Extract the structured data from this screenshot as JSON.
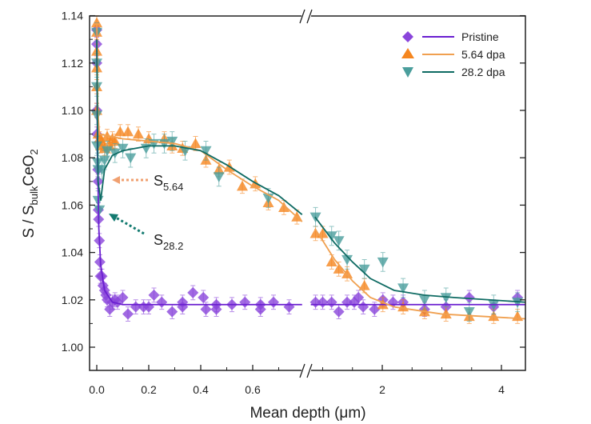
{
  "chart_data": {
    "type": "scatter",
    "xlabel": "Mean depth (μm)",
    "ylabel_parts": {
      "main": "S / S",
      "sub": "bulk",
      "mid": "CeO",
      "sub2": "2"
    },
    "ylim": [
      0.99,
      1.14
    ],
    "x_segments": [
      [
        -0.03,
        0.79
      ],
      [
        0.8,
        4.4
      ]
    ],
    "xticks_left": [
      0.0,
      0.2,
      0.4,
      0.6
    ],
    "xtick_labels_left": [
      "0.0",
      "0.2",
      "0.4",
      "0.6"
    ],
    "xticks_right": [
      2,
      4
    ],
    "xtick_labels_right": [
      "2",
      "4"
    ],
    "yticks": [
      1.0,
      1.02,
      1.04,
      1.06,
      1.08,
      1.1,
      1.12,
      1.14
    ],
    "ytick_labels": [
      "1.00",
      "1.02",
      "1.04",
      "1.06",
      "1.08",
      "1.10",
      "1.12",
      "1.14"
    ],
    "legend_position": "top-right",
    "annotations": [
      {
        "main": "S",
        "sub": "5.64",
        "color": "#f0a070"
      },
      {
        "main": "S",
        "sub": "28.2",
        "color": "#137a70"
      }
    ],
    "series": [
      {
        "name": "Pristine",
        "marker": "diamond",
        "color": "#8a45db",
        "line": "#6a1fd0",
        "error": 0.003,
        "x": [
          0,
          0,
          0,
          0,
          0,
          0.004,
          0.005,
          0.006,
          0.007,
          0.01,
          0.012,
          0.014,
          0.02,
          0.024,
          0.03,
          0.035,
          0.04,
          0.05,
          0.06,
          0.07,
          0.08,
          0.1,
          0.12,
          0.15,
          0.18,
          0.2,
          0.22,
          0.25,
          0.29,
          0.33,
          0.37,
          0.41,
          0.46,
          0.52,
          0.57,
          0.63,
          0.68,
          0.74,
          0.33,
          0.42,
          0.46,
          0.63,
          0.88,
          1.0,
          1.15,
          1.27,
          1.41,
          1.53,
          1.6,
          1.68,
          1.87,
          2.01,
          2.18,
          2.35,
          2.71,
          3.07,
          3.46,
          3.87,
          4.27
        ],
        "y": [
          1.134,
          1.128,
          1.12,
          1.1,
          1.09,
          1.075,
          1.07,
          1.058,
          1.054,
          1.045,
          1.036,
          1.03,
          1.03,
          1.026,
          1.024,
          1.022,
          1.02,
          1.016,
          1.019,
          1.02,
          1.019,
          1.021,
          1.014,
          1.017,
          1.017,
          1.017,
          1.022,
          1.019,
          1.015,
          1.017,
          1.023,
          1.021,
          1.018,
          1.018,
          1.019,
          1.018,
          1.019,
          1.017,
          1.019,
          1.016,
          1.016,
          1.016,
          1.019,
          1.019,
          1.019,
          1.015,
          1.019,
          1.019,
          1.021,
          1.017,
          1.016,
          1.02,
          1.019,
          1.019,
          1.016,
          1.017,
          1.021,
          1.017,
          1.021
        ],
        "fit_x": [
          0,
          0.003,
          0.008,
          0.015,
          0.03,
          0.06,
          0.1,
          0.79,
          0.8,
          4.4
        ],
        "fit_y": [
          1.135,
          1.08,
          1.05,
          1.035,
          1.024,
          1.019,
          1.018,
          1.018,
          1.018,
          1.018
        ]
      },
      {
        "name": "5.64 dpa",
        "marker": "up",
        "color": "#f5861f",
        "line": "#f0a050",
        "error": 0.003,
        "x": [
          0,
          0,
          0,
          0,
          0,
          0,
          0.005,
          0.01,
          0.015,
          0.02,
          0.03,
          0.04,
          0.05,
          0.06,
          0.07,
          0.09,
          0.12,
          0.16,
          0.2,
          0.26,
          0.29,
          0.33,
          0.38,
          0.42,
          0.47,
          0.51,
          0.56,
          0.61,
          0.66,
          0.72,
          0.77,
          0.88,
          1.0,
          1.15,
          1.27,
          1.41,
          1.7,
          2.01,
          2.35,
          2.71,
          3.07,
          3.46,
          3.87,
          4.27
        ],
        "y": [
          1.137,
          1.133,
          1.125,
          1.118,
          1.11,
          1.1,
          1.09,
          1.088,
          1.085,
          1.087,
          1.084,
          1.089,
          1.085,
          1.088,
          1.087,
          1.091,
          1.091,
          1.09,
          1.088,
          1.088,
          1.085,
          1.084,
          1.086,
          1.079,
          1.075,
          1.076,
          1.068,
          1.069,
          1.061,
          1.059,
          1.055,
          1.048,
          1.048,
          1.036,
          1.033,
          1.031,
          1.026,
          1.018,
          1.017,
          1.015,
          1.014,
          1.013,
          1.013,
          1.013
        ],
        "fit_x": [
          0,
          0.004,
          0.01,
          0.1,
          0.3,
          0.4,
          0.5,
          0.6,
          0.7,
          0.79,
          0.87,
          1.0,
          1.2,
          1.5,
          1.8,
          2.2,
          3.0,
          4.4
        ],
        "fit_y": [
          1.137,
          1.1,
          1.09,
          1.088,
          1.086,
          1.083,
          1.075,
          1.068,
          1.062,
          1.053,
          1.05,
          1.045,
          1.037,
          1.028,
          1.021,
          1.017,
          1.014,
          1.012
        ]
      },
      {
        "name": "28.2 dpa",
        "marker": "down",
        "color": "#4a9e9c",
        "line": "#0f6b63",
        "error": 0.004,
        "x": [
          0,
          0,
          0,
          0,
          0,
          0.003,
          0.005,
          0.005,
          0.01,
          0.02,
          0.03,
          0.04,
          0.07,
          0.1,
          0.13,
          0.19,
          0.22,
          0.26,
          0.29,
          0.34,
          0.42,
          0.47,
          0.66,
          0.88,
          1.15,
          1.27,
          1.41,
          1.7,
          2.01,
          2.35,
          2.71,
          3.07,
          3.46,
          3.87,
          4.27
        ],
        "y": [
          1.133,
          1.12,
          1.11,
          1.098,
          1.085,
          1.078,
          1.075,
          1.062,
          1.058,
          1.075,
          1.079,
          1.083,
          1.082,
          1.084,
          1.08,
          1.084,
          1.086,
          1.086,
          1.087,
          1.083,
          1.083,
          1.072,
          1.063,
          1.055,
          1.047,
          1.045,
          1.037,
          1.033,
          1.036,
          1.025,
          1.02,
          1.021,
          1.015,
          1.018,
          1.019
        ],
        "fit_x": [
          0,
          0.005,
          0.015,
          0.03,
          0.06,
          0.1,
          0.2,
          0.3,
          0.4,
          0.5,
          0.6,
          0.7,
          0.79,
          0.87,
          1.2,
          1.5,
          1.8,
          2.2,
          2.7,
          3.2,
          4.4
        ],
        "fit_y": [
          1.13,
          1.07,
          1.062,
          1.075,
          1.081,
          1.083,
          1.085,
          1.085,
          1.083,
          1.077,
          1.07,
          1.064,
          1.056,
          1.055,
          1.044,
          1.036,
          1.029,
          1.024,
          1.022,
          1.021,
          1.019
        ]
      }
    ]
  }
}
